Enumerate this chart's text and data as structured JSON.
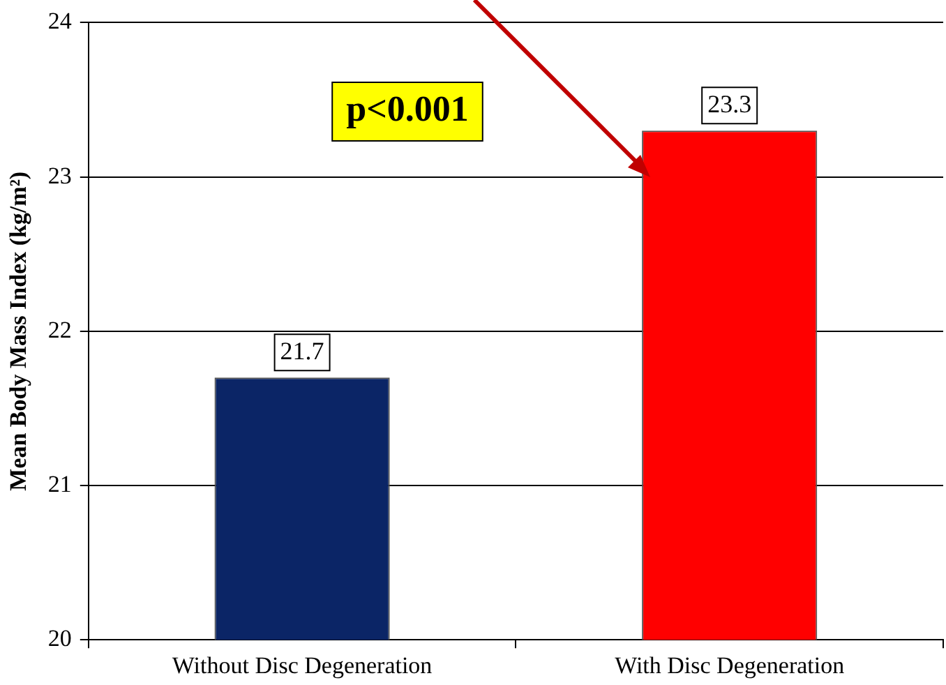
{
  "chart_data": {
    "type": "bar",
    "ylabel": "Mean Body Mass Index (kg/m²)",
    "categories": [
      "Without Disc Degeneration",
      "With Disc Degeneration"
    ],
    "values": [
      21.7,
      23.3
    ],
    "colors": [
      "#0b2566",
      "#ff0000"
    ],
    "ylim": [
      20,
      24
    ],
    "yticks": [
      20,
      21,
      22,
      23,
      24
    ],
    "grid": "y",
    "legend": false,
    "data_labels": true,
    "annotations": [
      "p<0.001"
    ]
  }
}
